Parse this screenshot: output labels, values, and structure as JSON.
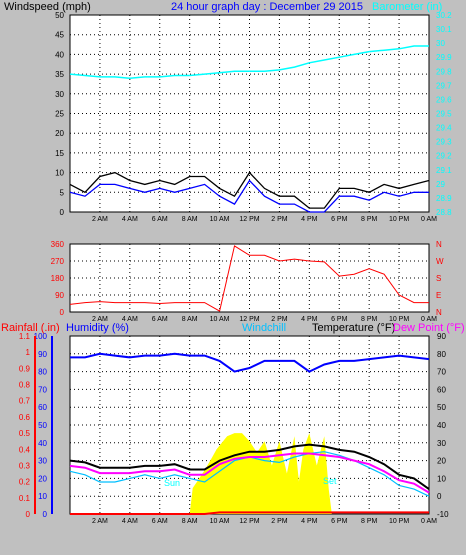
{
  "header": {
    "title": "24 hour graph day : December 29 2015",
    "left_label": "Windspeed (mph)",
    "right_label": "Barometer (in)"
  },
  "x_ticks": [
    "2 AM",
    "4 AM",
    "6 AM",
    "8 AM",
    "10 AM",
    "12 PM",
    "2 PM",
    "4 PM",
    "6 PM",
    "8 PM",
    "10 PM",
    "0 AM"
  ],
  "panel1": {
    "left_ticks": [
      "0",
      "5",
      "10",
      "15",
      "20",
      "25",
      "30",
      "35",
      "40",
      "45",
      "50"
    ],
    "right_ticks": [
      "28.8",
      "28.9",
      "29",
      "29.1",
      "29.2",
      "29.3",
      "29.4",
      "29.5",
      "29.6",
      "29.7",
      "29.8",
      "29.9",
      "30",
      "30.1",
      "30.2"
    ]
  },
  "panel2": {
    "left_ticks": [
      "0",
      "90",
      "180",
      "270",
      "360"
    ],
    "right_ticks": [
      "N",
      "E",
      "S",
      "W",
      "N"
    ]
  },
  "panel3": {
    "labels": {
      "rainfall": "Rainfall (.in)",
      "humidity": "Humidity (%)",
      "windchill": "Windchill",
      "temperature": "Temperature (°F)",
      "dewpoint": "Dew Point (°F)"
    },
    "rain_ticks": [
      "0",
      "0.1",
      "0.2",
      "0.3",
      "0.4",
      "0.5",
      "0.6",
      "0.7",
      "0.8",
      "0.9",
      "1",
      "1.1"
    ],
    "humidity_ticks": [
      "0",
      "10",
      "20",
      "30",
      "40",
      "50",
      "60",
      "70",
      "80",
      "90",
      "100"
    ],
    "temp_ticks": [
      "-10",
      "0",
      "10",
      "20",
      "30",
      "40",
      "50",
      "60",
      "70",
      "80",
      "90"
    ],
    "sun_rise": "Sun",
    "sun_set": "Set"
  },
  "colors": {
    "background": "#c0c0c0",
    "plot_bg": "#ffffff",
    "wind_gust": "#000000",
    "wind_avg": "#0000ff",
    "barometer": "#00ffff",
    "direction": "#ff0000",
    "rainfall": "#ff0000",
    "humidity": "#0000ff",
    "windchill": "#00bfff",
    "temperature": "#000000",
    "dewpoint": "#ff00ff",
    "solar": "#ffff00",
    "sun_markers": "#00ffff"
  },
  "chart_data": [
    {
      "type": "line",
      "x_unit": "hour",
      "x": [
        0,
        1,
        2,
        3,
        4,
        5,
        6,
        7,
        8,
        9,
        10,
        11,
        12,
        13,
        14,
        15,
        16,
        17,
        18,
        19,
        20,
        21,
        22,
        23,
        24
      ],
      "xlim": [
        0,
        24
      ],
      "series": [
        {
          "name": "Windspeed (mph)",
          "axis": "left",
          "ylim": [
            0,
            50
          ],
          "values": [
            5,
            4,
            7,
            7,
            6,
            5,
            6,
            5,
            6,
            7,
            4,
            2,
            8,
            4,
            2,
            2,
            0,
            0,
            4,
            4,
            3,
            5,
            4,
            5,
            5
          ]
        },
        {
          "name": "Windspeed (mph) gust",
          "axis": "left",
          "ylim": [
            0,
            50
          ],
          "values": [
            7,
            5,
            9,
            10,
            8,
            7,
            8,
            7,
            9,
            9,
            6,
            4,
            10,
            6,
            4,
            4,
            1,
            1,
            6,
            6,
            5,
            7,
            6,
            7,
            8
          ]
        },
        {
          "name": "Barometer (in)",
          "axis": "right",
          "ylim": [
            28.8,
            30.2
          ],
          "values": [
            29.78,
            29.77,
            29.76,
            29.76,
            29.75,
            29.76,
            29.76,
            29.77,
            29.77,
            29.78,
            29.79,
            29.8,
            29.8,
            29.8,
            29.81,
            29.83,
            29.86,
            29.88,
            29.9,
            29.92,
            29.94,
            29.95,
            29.96,
            29.98,
            29.98
          ]
        }
      ]
    },
    {
      "type": "line",
      "x_unit": "hour",
      "x": [
        0,
        1,
        2,
        3,
        4,
        5,
        6,
        7,
        8,
        9,
        10,
        11,
        12,
        13,
        14,
        15,
        16,
        17,
        18,
        19,
        20,
        21,
        22,
        23,
        24
      ],
      "xlim": [
        0,
        24
      ],
      "ylim": [
        0,
        360
      ],
      "series": [
        {
          "name": "Wind direction",
          "values": [
            40,
            50,
            55,
            50,
            50,
            50,
            45,
            50,
            50,
            50,
            5,
            350,
            300,
            300,
            270,
            280,
            270,
            265,
            190,
            200,
            230,
            200,
            90,
            50,
            50
          ]
        }
      ]
    },
    {
      "type": "line",
      "x_unit": "hour",
      "x": [
        0,
        1,
        2,
        3,
        4,
        5,
        6,
        7,
        8,
        9,
        10,
        11,
        12,
        13,
        14,
        15,
        16,
        17,
        18,
        19,
        20,
        21,
        22,
        23,
        24
      ],
      "xlim": [
        0,
        24
      ],
      "series": [
        {
          "name": "Humidity (%)",
          "axis": "humidity",
          "ylim": [
            0,
            100
          ],
          "values": [
            88,
            88,
            90,
            89,
            88,
            89,
            89,
            90,
            89,
            89,
            86,
            80,
            82,
            86,
            86,
            86,
            80,
            84,
            86,
            86,
            87,
            88,
            89,
            88,
            87
          ]
        },
        {
          "name": "Temperature (°F)",
          "axis": "temp",
          "ylim": [
            -10,
            90
          ],
          "values": [
            20,
            19,
            16,
            16,
            16,
            17,
            17,
            18,
            15,
            15,
            20,
            23,
            25,
            25,
            26,
            28,
            29,
            28,
            26,
            25,
            22,
            18,
            12,
            10,
            4
          ]
        },
        {
          "name": "Dew Point (°F)",
          "axis": "temp",
          "ylim": [
            -10,
            90
          ],
          "values": [
            17,
            16,
            13,
            13,
            13,
            14,
            14,
            15,
            12,
            12,
            18,
            21,
            22,
            22,
            23,
            24,
            24,
            23,
            22,
            20,
            18,
            14,
            9,
            7,
            2
          ]
        },
        {
          "name": "Windchill",
          "axis": "temp",
          "ylim": [
            -10,
            90
          ],
          "values": [
            14,
            12,
            8,
            8,
            10,
            12,
            10,
            12,
            10,
            8,
            14,
            20,
            22,
            20,
            19,
            22,
            24,
            25,
            23,
            20,
            16,
            12,
            6,
            4,
            0
          ]
        },
        {
          "name": "Rainfall (.in)",
          "axis": "rain",
          "ylim": [
            0,
            1.1
          ],
          "values": [
            0,
            0,
            0,
            0,
            0,
            0,
            0,
            0,
            0,
            0,
            0.01,
            0.01,
            0.01,
            0.01,
            0.01,
            0.01,
            0.01,
            0.01,
            0.01,
            0.01,
            0.01,
            0.01,
            0.01,
            0.01,
            0.01
          ]
        },
        {
          "name": "Solar",
          "axis": "rain",
          "ylim": [
            0,
            1.1
          ],
          "x": [
            8.0,
            8.2,
            8.5,
            9.0,
            9.5,
            9.8,
            10.5,
            11.0,
            11.5,
            12.0,
            12.5,
            13.0,
            13.5,
            14.0,
            14.5,
            15.0,
            15.3,
            15.6,
            16.0,
            16.5,
            17.0,
            17.3,
            17.5
          ],
          "values": [
            0,
            0.16,
            0.2,
            0.27,
            0.35,
            0.4,
            0.48,
            0.5,
            0.5,
            0.45,
            0.38,
            0.45,
            0.3,
            0.45,
            0.25,
            0.48,
            0.2,
            0.4,
            0.5,
            0.3,
            0.48,
            0.15,
            0
          ]
        }
      ]
    }
  ]
}
